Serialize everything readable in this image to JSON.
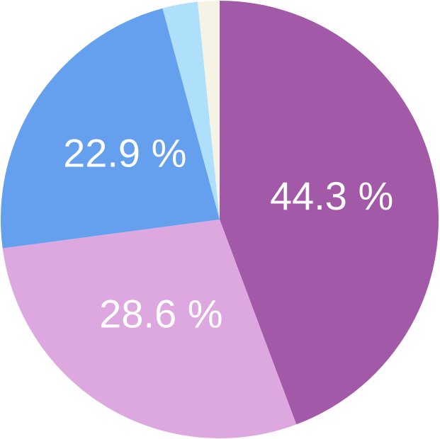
{
  "chart_data": {
    "type": "pie",
    "values": [
      44.3,
      28.6,
      22.9,
      2.6,
      1.6
    ],
    "value_labels": [
      "44.3 %",
      "28.6 %",
      "22.9 %",
      null,
      null
    ],
    "colors": [
      "#a259a8",
      "#dda8e0",
      "#64a0ee",
      "#aee0fc",
      "#f5f2e6"
    ]
  }
}
